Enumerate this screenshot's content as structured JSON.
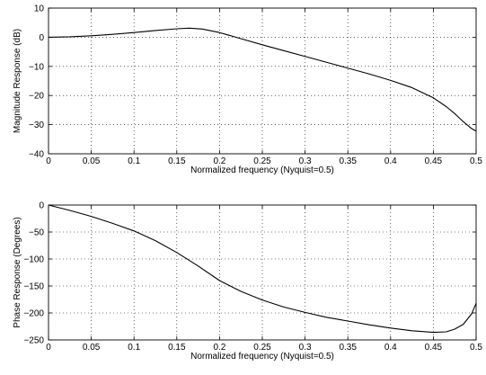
{
  "chart_data": [
    {
      "type": "line",
      "xlabel": "Normalized frequency (Nyquist=0.5)",
      "ylabel": "Magnitude Response (dB)",
      "xlim": [
        0,
        0.5
      ],
      "ylim": [
        -40,
        10
      ],
      "xticks": [
        "0",
        "0.05",
        "0.1",
        "0.15",
        "0.2",
        "0.25",
        "0.3",
        "0.35",
        "0.4",
        "0.45",
        "0.5"
      ],
      "yticks": [
        "10",
        "0",
        "−10",
        "−20",
        "−30",
        "−40"
      ],
      "grid": true,
      "series": [
        {
          "x": [
            0,
            0.025,
            0.05,
            0.075,
            0.1,
            0.125,
            0.15,
            0.165,
            0.18,
            0.2,
            0.225,
            0.25,
            0.275,
            0.3,
            0.325,
            0.35,
            0.375,
            0.4,
            0.425,
            0.45,
            0.465,
            0.475,
            0.485,
            0.495,
            0.5
          ],
          "y": [
            0,
            0.15,
            0.5,
            1.0,
            1.6,
            2.3,
            2.9,
            3.1,
            2.8,
            1.6,
            -0.5,
            -2.6,
            -4.6,
            -6.6,
            -8.6,
            -10.6,
            -12.6,
            -14.8,
            -17.3,
            -20.8,
            -23.8,
            -26.2,
            -29.0,
            -31.4,
            -32.2
          ]
        }
      ]
    },
    {
      "type": "line",
      "xlabel": "Normalized frequency (Nyquist=0.5)",
      "ylabel": "Phase Response (Degrees)",
      "xlim": [
        0,
        0.5
      ],
      "ylim": [
        -250,
        0
      ],
      "xticks": [
        "0",
        "0.05",
        "0.1",
        "0.15",
        "0.2",
        "0.25",
        "0.3",
        "0.35",
        "0.4",
        "0.45",
        "0.5"
      ],
      "yticks": [
        "0",
        "−50",
        "−100",
        "−150",
        "−200",
        "−250"
      ],
      "grid": true,
      "series": [
        {
          "x": [
            0,
            0.025,
            0.05,
            0.075,
            0.1,
            0.125,
            0.15,
            0.175,
            0.2,
            0.225,
            0.25,
            0.275,
            0.3,
            0.325,
            0.35,
            0.375,
            0.4,
            0.425,
            0.45,
            0.465,
            0.475,
            0.485,
            0.495,
            0.5
          ],
          "y": [
            0,
            -10,
            -21,
            -34,
            -48,
            -66,
            -88,
            -113,
            -140,
            -160,
            -176,
            -189,
            -199,
            -208,
            -215,
            -222,
            -228,
            -233,
            -236,
            -235,
            -230,
            -221,
            -201,
            -182
          ]
        }
      ]
    }
  ]
}
